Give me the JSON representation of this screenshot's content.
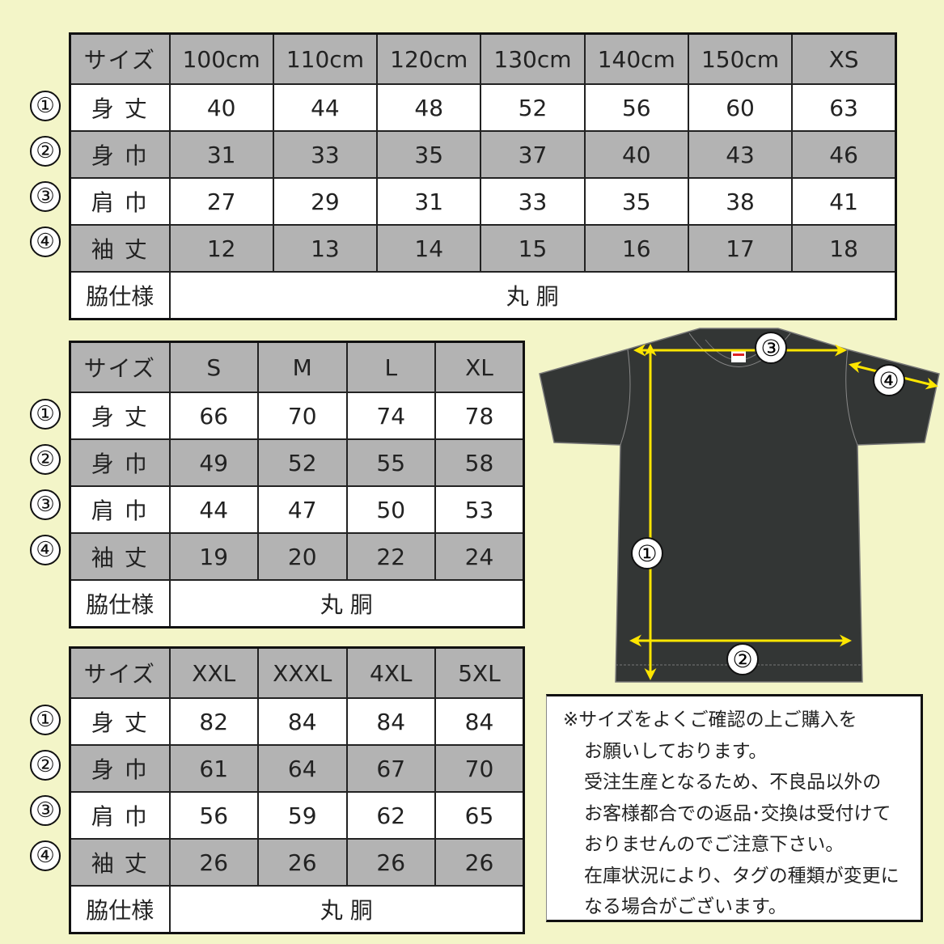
{
  "colors": {
    "background": "#f3f5c8",
    "header_gray": "#b3b3b3",
    "arrow": "#ffe600",
    "shirt": "#333635"
  },
  "row_markers": [
    "①",
    "②",
    "③",
    "④"
  ],
  "row_labels": {
    "size": "サイズ",
    "length": "身 丈",
    "width": "身 巾",
    "shoulder": "肩 巾",
    "sleeve": "袖 丈",
    "side": "脇仕様"
  },
  "tables": [
    {
      "sizes": [
        "100cm",
        "110cm",
        "120cm",
        "130cm",
        "140cm",
        "150cm",
        "XS"
      ],
      "length": [
        "40",
        "44",
        "48",
        "52",
        "56",
        "60",
        "63"
      ],
      "width": [
        "31",
        "33",
        "35",
        "37",
        "40",
        "43",
        "46"
      ],
      "shoulder": [
        "27",
        "29",
        "31",
        "33",
        "35",
        "38",
        "41"
      ],
      "sleeve": [
        "12",
        "13",
        "14",
        "15",
        "16",
        "17",
        "18"
      ],
      "side": "丸 胴"
    },
    {
      "sizes": [
        "S",
        "M",
        "L",
        "XL"
      ],
      "length": [
        "66",
        "70",
        "74",
        "78"
      ],
      "width": [
        "49",
        "52",
        "55",
        "58"
      ],
      "shoulder": [
        "44",
        "47",
        "50",
        "53"
      ],
      "sleeve": [
        "19",
        "20",
        "22",
        "24"
      ],
      "side": "丸 胴"
    },
    {
      "sizes": [
        "XXL",
        "XXXL",
        "4XL",
        "5XL"
      ],
      "length": [
        "82",
        "84",
        "84",
        "84"
      ],
      "width": [
        "61",
        "64",
        "67",
        "70"
      ],
      "shoulder": [
        "56",
        "59",
        "62",
        "65"
      ],
      "sleeve": [
        "26",
        "26",
        "26",
        "26"
      ],
      "side": "丸 胴"
    }
  ],
  "diagram": {
    "markers": [
      "①",
      "②",
      "③",
      "④"
    ]
  },
  "note": {
    "lines": [
      "※サイズをよくご確認の上ご購入を",
      "お願いしております。",
      "受注生産となるため、不良品以外の",
      "お客様都合での返品･交換は受付けて",
      "おりませんのでご注意下さい。",
      "在庫状況により、タグの種類が変更に",
      "なる場合がございます。"
    ]
  }
}
